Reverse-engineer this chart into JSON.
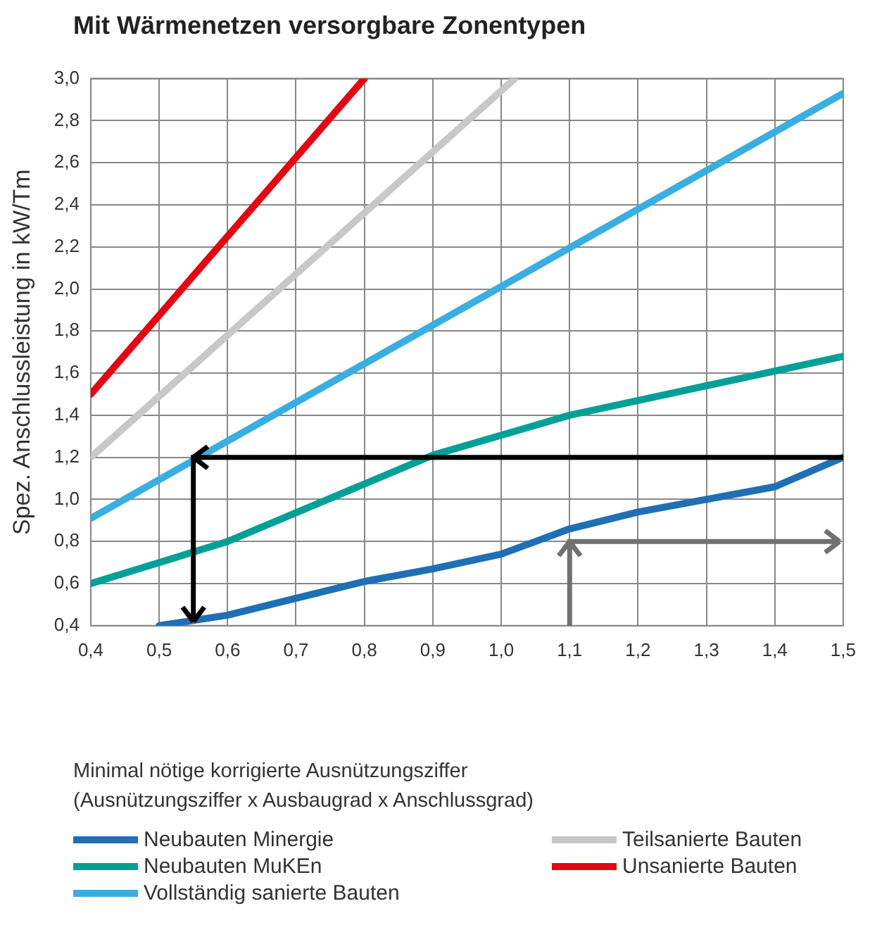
{
  "chart_data": {
    "type": "line",
    "title": "Mit Wärmenetzen versorgbare Zonentypen",
    "ylabel": "Spez. Anschlussleistung in kW/Tm",
    "xlabel": "Minimal nötige korrigierte Ausnützungsziffer\n(Ausnützungsziffer x Ausbaugrad x Anschlussgrad)",
    "xlim": [
      0.4,
      1.5
    ],
    "ylim": [
      0.4,
      3.0
    ],
    "xticks": [
      {
        "value": 0.4,
        "label": "0,4"
      },
      {
        "value": 0.5,
        "label": "0,5"
      },
      {
        "value": 0.6,
        "label": "0,6"
      },
      {
        "value": 0.7,
        "label": "0,7"
      },
      {
        "value": 0.8,
        "label": "0,8"
      },
      {
        "value": 0.9,
        "label": "0,9"
      },
      {
        "value": 1.0,
        "label": "1,0"
      },
      {
        "value": 1.1,
        "label": "1,1"
      },
      {
        "value": 1.2,
        "label": "1,2"
      },
      {
        "value": 1.3,
        "label": "1,3"
      },
      {
        "value": 1.4,
        "label": "1,4"
      },
      {
        "value": 1.5,
        "label": "1,5"
      }
    ],
    "yticks": [
      {
        "value": 0.4,
        "label": "0,4"
      },
      {
        "value": 0.6,
        "label": "0,6"
      },
      {
        "value": 0.8,
        "label": "0,8"
      },
      {
        "value": 1.0,
        "label": "1,0"
      },
      {
        "value": 1.2,
        "label": "1,2"
      },
      {
        "value": 1.4,
        "label": "1,4"
      },
      {
        "value": 1.6,
        "label": "1,6"
      },
      {
        "value": 1.8,
        "label": "1,8"
      },
      {
        "value": 2.0,
        "label": "2,0"
      },
      {
        "value": 2.2,
        "label": "2,2"
      },
      {
        "value": 2.4,
        "label": "2,4"
      },
      {
        "value": 2.6,
        "label": "2,6"
      },
      {
        "value": 2.8,
        "label": "2,8"
      },
      {
        "value": 3.0,
        "label": "3,0"
      }
    ],
    "grid": true,
    "legend": "bottom",
    "marker": "none",
    "line_style": "solid",
    "series": [
      {
        "name": "Neubauten Minergie",
        "color": "#1f6fb5",
        "x": [
          0.5,
          0.6,
          0.7,
          0.8,
          0.9,
          1.0,
          1.1,
          1.2,
          1.3,
          1.4,
          1.5
        ],
        "values": [
          0.4,
          0.45,
          0.53,
          0.61,
          0.67,
          0.74,
          0.86,
          0.94,
          1.0,
          1.06,
          1.2
        ]
      },
      {
        "name": "Teilsanierte Bauten",
        "color": "#c8c8c8",
        "x": [
          0.4,
          1.02
        ],
        "values": [
          1.2,
          3.0
        ]
      },
      {
        "name": "Neubauten MuKEn",
        "color": "#00a096",
        "x": [
          0.4,
          0.6,
          0.9,
          1.1,
          1.5
        ],
        "values": [
          0.6,
          0.8,
          1.21,
          1.4,
          1.68
        ]
      },
      {
        "name": "Unsanierte Bauten",
        "color": "#e30613",
        "x": [
          0.4,
          0.8
        ],
        "values": [
          1.5,
          3.0
        ]
      },
      {
        "name": "Vollständig sanierte Bauten",
        "color": "#3aaee0",
        "x": [
          0.4,
          1.5
        ],
        "values": [
          0.91,
          2.93
        ]
      }
    ]
  }
}
